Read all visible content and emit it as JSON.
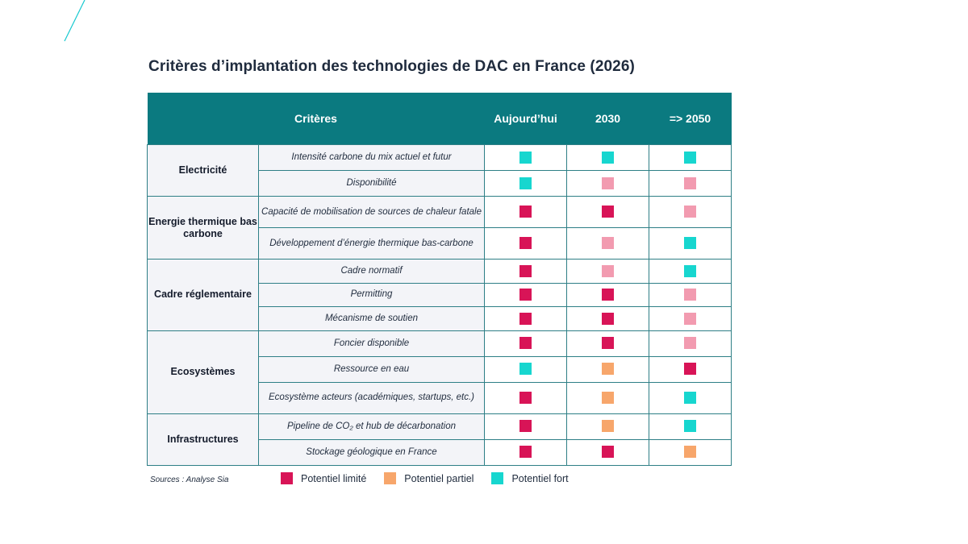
{
  "title": "Critères d’implantation des technologies de DAC en France (2026)",
  "colors": {
    "header_bg": "#0b7a80",
    "limite": "#d81457",
    "partiel": "#f7a66b",
    "fort": "#17d6cf",
    "pink": "#f29bb0"
  },
  "chart_data": {
    "type": "table",
    "columns": [
      "Critères",
      "Aujourd’hui",
      "2030",
      "=> 2050"
    ],
    "legend": {
      "limite": "Potentiel limité",
      "partiel": "Potentiel partiel",
      "fort": "Potentiel fort"
    },
    "groups": [
      {
        "category": "Electricité",
        "rows": [
          {
            "criterion": "Intensité carbone du mix actuel et futur",
            "values": [
              "fort",
              "fort",
              "fort"
            ]
          },
          {
            "criterion": "Disponibilité",
            "values": [
              "fort",
              "pink",
              "pink"
            ]
          }
        ]
      },
      {
        "category": "Energie thermique bas carbone",
        "rows": [
          {
            "criterion": "Capacité de mobilisation de sources de chaleur fatale",
            "values": [
              "limite",
              "limite",
              "pink"
            ]
          },
          {
            "criterion": "Développement d’énergie thermique bas-carbone",
            "values": [
              "limite",
              "pink",
              "fort"
            ]
          }
        ]
      },
      {
        "category": "Cadre réglementaire",
        "rows": [
          {
            "criterion": "Cadre normatif",
            "values": [
              "limite",
              "pink",
              "fort"
            ]
          },
          {
            "criterion": "Permitting",
            "values": [
              "limite",
              "limite",
              "pink"
            ]
          },
          {
            "criterion": "Mécanisme de soutien",
            "values": [
              "limite",
              "limite",
              "pink"
            ]
          }
        ]
      },
      {
        "category": "Ecosystèmes",
        "rows": [
          {
            "criterion": "Foncier disponible",
            "values": [
              "limite",
              "limite",
              "pink"
            ]
          },
          {
            "criterion": "Ressource en eau",
            "values": [
              "fort",
              "partiel",
              "limite"
            ]
          },
          {
            "criterion": "Ecosystème acteurs (académiques, startups, etc.)",
            "values": [
              "limite",
              "partiel",
              "fort"
            ]
          }
        ]
      },
      {
        "category": "Infrastructures",
        "rows": [
          {
            "criterion": "Pipeline de CO₂ et hub de décarbonation",
            "values": [
              "limite",
              "partiel",
              "fort"
            ]
          },
          {
            "criterion": "Stockage géologique en France",
            "values": [
              "limite",
              "limite",
              "partiel"
            ]
          }
        ]
      }
    ]
  },
  "sources": "Sources : Analyse Sia"
}
